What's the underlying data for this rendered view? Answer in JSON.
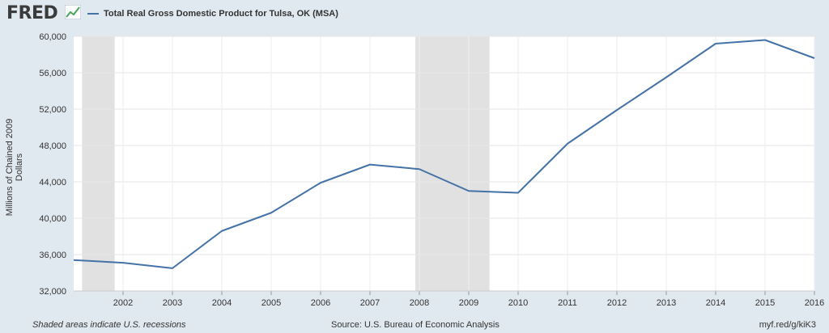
{
  "header": {
    "logo_text": "FRED",
    "logo_icon": "fred-graph-icon"
  },
  "chart_data": {
    "type": "line",
    "title": "Total Real Gross Domestic Product for Tulsa, OK (MSA)",
    "xlabel": "",
    "ylabel": "Millions of Chained 2009 Dollars",
    "x": [
      2001,
      2002,
      2003,
      2004,
      2005,
      2006,
      2007,
      2008,
      2009,
      2010,
      2011,
      2012,
      2013,
      2014,
      2015,
      2016
    ],
    "series": [
      {
        "name": "Total Real Gross Domestic Product for Tulsa, OK (MSA)",
        "values": [
          35400,
          35100,
          34500,
          38600,
          40600,
          43900,
          45900,
          45400,
          43000,
          42800,
          48200,
          51900,
          55500,
          59200,
          59600,
          57600
        ],
        "color": "#4572a7"
      }
    ],
    "xlim": [
      2001,
      2016
    ],
    "ylim": [
      32000,
      60000
    ],
    "y_ticks": [
      32000,
      36000,
      40000,
      44000,
      48000,
      52000,
      56000,
      60000
    ],
    "y_tick_labels": [
      "32,000",
      "36,000",
      "40,000",
      "44,000",
      "48,000",
      "52,000",
      "56,000",
      "60,000"
    ],
    "x_ticks": [
      2002,
      2003,
      2004,
      2005,
      2006,
      2007,
      2008,
      2009,
      2010,
      2011,
      2012,
      2013,
      2014,
      2015,
      2016
    ],
    "x_tick_labels": [
      "2002",
      "2003",
      "2004",
      "2005",
      "2006",
      "2007",
      "2008",
      "2009",
      "2010",
      "2011",
      "2012",
      "2013",
      "2014",
      "2015",
      "2016"
    ],
    "recessions": [
      [
        2001.17,
        2001.83
      ],
      [
        2007.92,
        2009.42
      ]
    ],
    "grid": true,
    "legend_position": "top-left"
  },
  "footer": {
    "note": "Shaded areas indicate U.S. recessions",
    "source": "Source: U.S. Bureau of Economic Analysis",
    "url": "myf.red/g/kiK3"
  }
}
